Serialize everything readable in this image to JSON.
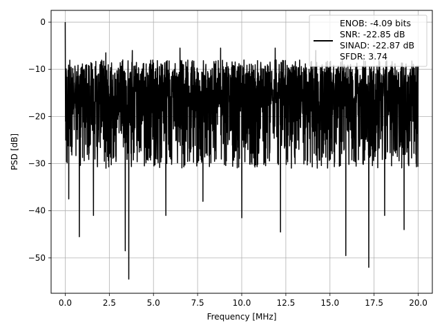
{
  "chart_data": {
    "type": "line",
    "title": "",
    "xlabel": "Frequency [MHz]",
    "ylabel": "PSD [dB]",
    "xlim": [
      -0.8,
      20.8
    ],
    "ylim": [
      -57.5,
      2.5
    ],
    "xticks": [
      0.0,
      2.5,
      5.0,
      7.5,
      10.0,
      12.5,
      15.0,
      17.5,
      20.0
    ],
    "xtick_labels": [
      "0.0",
      "2.5",
      "5.0",
      "7.5",
      "10.0",
      "12.5",
      "15.0",
      "17.5",
      "20.0"
    ],
    "yticks": [
      0,
      -10,
      -20,
      -30,
      -40,
      -50
    ],
    "ytick_labels": [
      "0",
      "−10",
      "−20",
      "−30",
      "−40",
      "−50"
    ],
    "grid": true,
    "legend_position": "upper-right",
    "legend_entries": [
      "ENOB: -4.09 bits",
      "SNR: -22.85 dB",
      "SINAD: -22.87 dB",
      "SFDR: 3.74"
    ],
    "line_color": "#000000",
    "series": [
      {
        "name": "",
        "x_range": [
          0.0,
          20.0
        ],
        "peak": {
          "x": 0.0,
          "y": 0.0
        },
        "noise_floor_band": [
          -28,
          -10
        ],
        "typical_floor": -18,
        "notable_dips": [
          {
            "x": 0.2,
            "y": -37.5
          },
          {
            "x": 0.8,
            "y": -45.5
          },
          {
            "x": 1.6,
            "y": -41.0
          },
          {
            "x": 3.4,
            "y": -48.5
          },
          {
            "x": 3.6,
            "y": -54.5
          },
          {
            "x": 5.7,
            "y": -41.0
          },
          {
            "x": 7.8,
            "y": -38.0
          },
          {
            "x": 10.0,
            "y": -41.5
          },
          {
            "x": 12.2,
            "y": -44.5
          },
          {
            "x": 15.9,
            "y": -49.5
          },
          {
            "x": 17.2,
            "y": -52.0
          },
          {
            "x": 18.1,
            "y": -41.0
          },
          {
            "x": 19.2,
            "y": -44.0
          }
        ],
        "notable_peaks": [
          {
            "x": 2.3,
            "y": -6.5
          },
          {
            "x": 3.8,
            "y": -6.0
          },
          {
            "x": 6.5,
            "y": -5.5
          },
          {
            "x": 8.8,
            "y": -5.5
          },
          {
            "x": 11.9,
            "y": -5.5
          },
          {
            "x": 14.2,
            "y": -6.0
          }
        ]
      }
    ]
  }
}
